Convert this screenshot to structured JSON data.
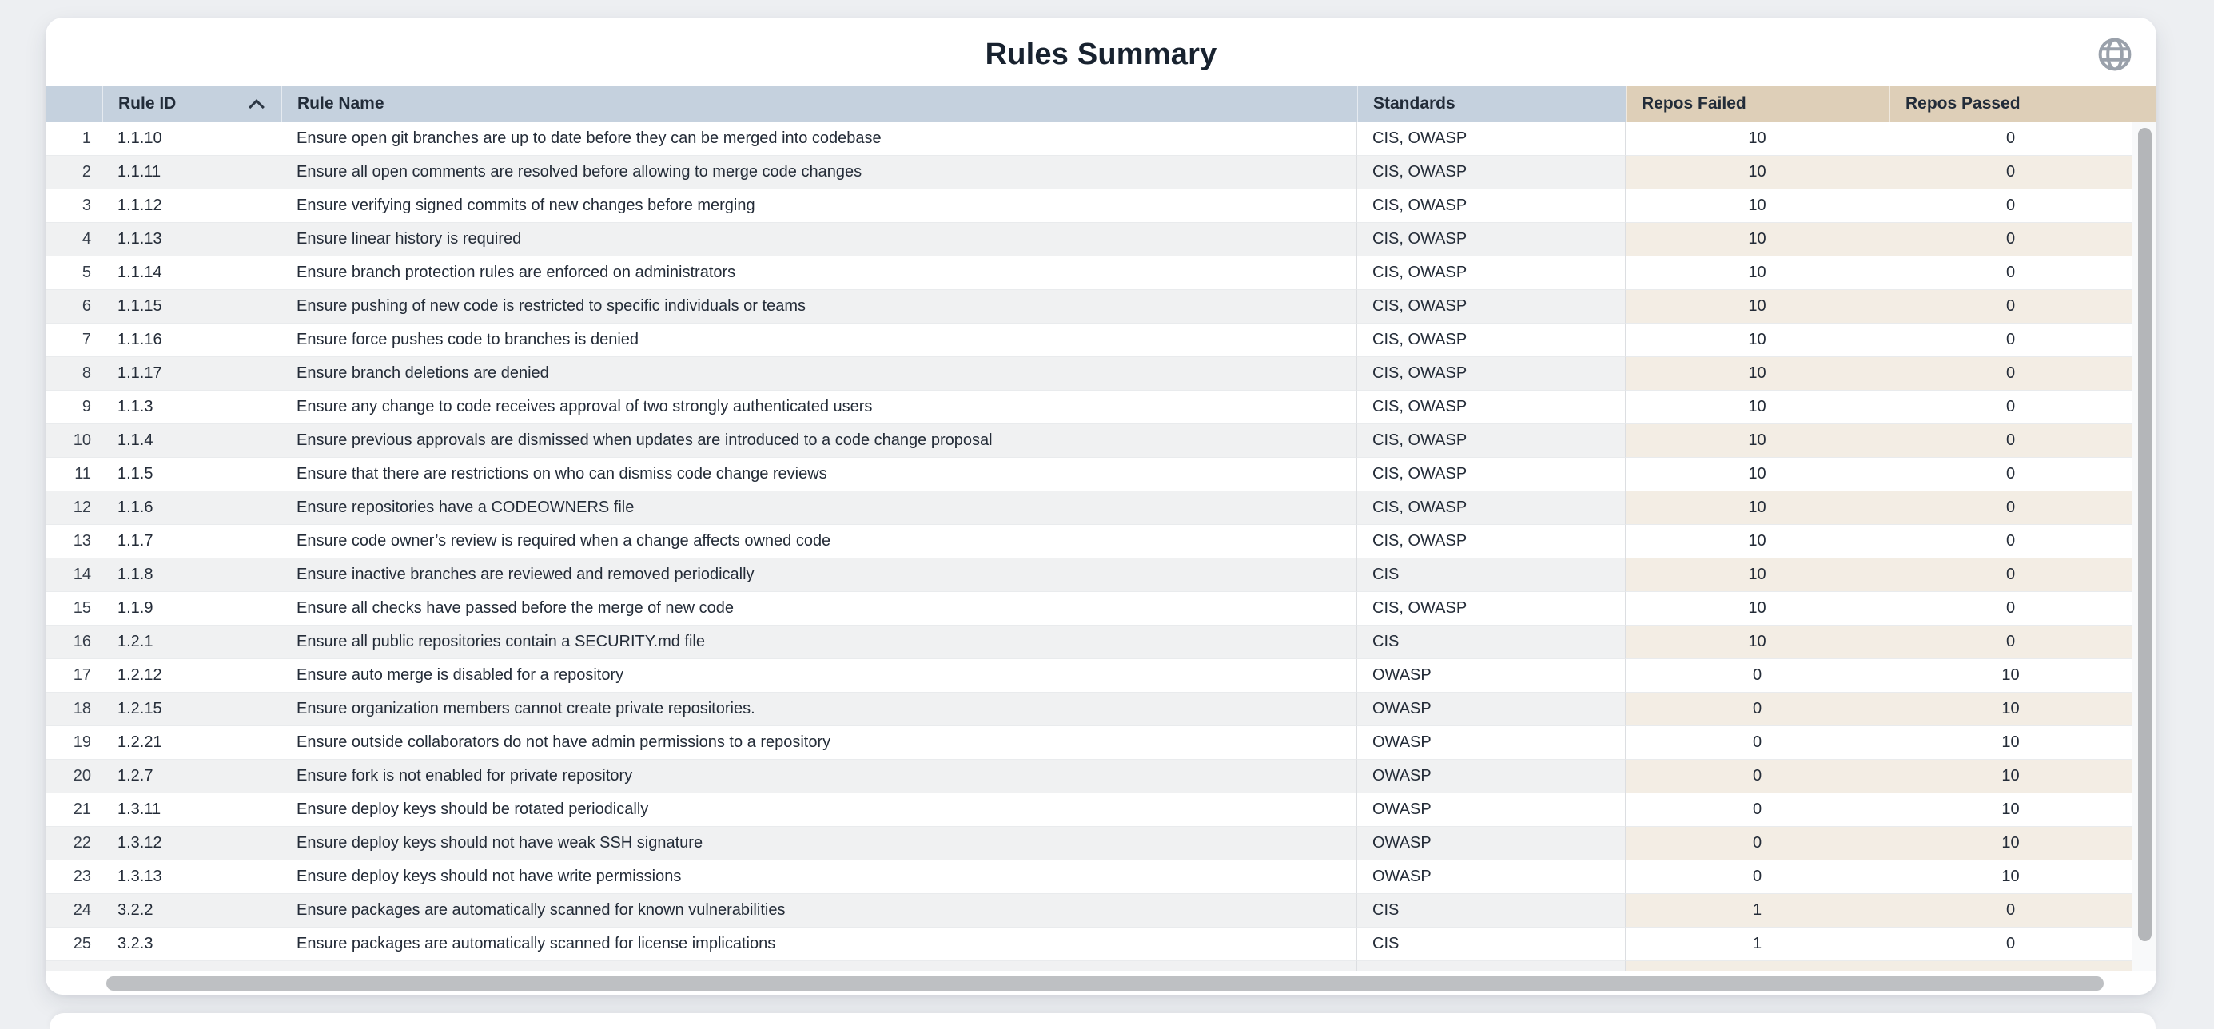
{
  "page": {
    "title": "Rules Summary"
  },
  "toolbar": {
    "globe_icon": "globe"
  },
  "table": {
    "sort": {
      "column": "rule_id",
      "direction": "ascending"
    },
    "columns": [
      {
        "key": "num",
        "label": ""
      },
      {
        "key": "rule_id",
        "label": "Rule ID"
      },
      {
        "key": "rule_name",
        "label": "Rule Name"
      },
      {
        "key": "standards",
        "label": "Standards"
      },
      {
        "key": "repos_failed",
        "label": "Repos Failed"
      },
      {
        "key": "repos_passed",
        "label": "Repos Passed"
      }
    ],
    "header_labels": {
      "rule_id": "Rule ID",
      "rule_name": "Rule Name",
      "standards": "Standards",
      "repos_failed": "Repos Failed",
      "repos_passed": "Repos Passed"
    },
    "rows": [
      {
        "num": "1",
        "rule_id": "1.1.10",
        "rule_name": "Ensure open git branches are up to date before they can be merged into codebase",
        "standards": "CIS, OWASP",
        "repos_failed": "10",
        "repos_passed": "0"
      },
      {
        "num": "2",
        "rule_id": "1.1.11",
        "rule_name": "Ensure all open comments are resolved before allowing to merge code changes",
        "standards": "CIS, OWASP",
        "repos_failed": "10",
        "repos_passed": "0"
      },
      {
        "num": "3",
        "rule_id": "1.1.12",
        "rule_name": "Ensure verifying signed commits of new changes before merging",
        "standards": "CIS, OWASP",
        "repos_failed": "10",
        "repos_passed": "0"
      },
      {
        "num": "4",
        "rule_id": "1.1.13",
        "rule_name": "Ensure linear history is required",
        "standards": "CIS, OWASP",
        "repos_failed": "10",
        "repos_passed": "0"
      },
      {
        "num": "5",
        "rule_id": "1.1.14",
        "rule_name": "Ensure branch protection rules are enforced on administrators",
        "standards": "CIS, OWASP",
        "repos_failed": "10",
        "repos_passed": "0"
      },
      {
        "num": "6",
        "rule_id": "1.1.15",
        "rule_name": "Ensure pushing of new code is restricted to specific individuals or teams",
        "standards": "CIS, OWASP",
        "repos_failed": "10",
        "repos_passed": "0"
      },
      {
        "num": "7",
        "rule_id": "1.1.16",
        "rule_name": "Ensure force pushes code to branches is denied",
        "standards": "CIS, OWASP",
        "repos_failed": "10",
        "repos_passed": "0"
      },
      {
        "num": "8",
        "rule_id": "1.1.17",
        "rule_name": "Ensure branch deletions are denied",
        "standards": "CIS, OWASP",
        "repos_failed": "10",
        "repos_passed": "0"
      },
      {
        "num": "9",
        "rule_id": "1.1.3",
        "rule_name": "Ensure any change to code receives approval of two strongly authenticated users",
        "standards": "CIS, OWASP",
        "repos_failed": "10",
        "repos_passed": "0"
      },
      {
        "num": "10",
        "rule_id": "1.1.4",
        "rule_name": "Ensure previous approvals are dismissed when updates are introduced to a code change proposal",
        "standards": "CIS, OWASP",
        "repos_failed": "10",
        "repos_passed": "0"
      },
      {
        "num": "11",
        "rule_id": "1.1.5",
        "rule_name": "Ensure that there are restrictions on who can dismiss code change reviews",
        "standards": "CIS, OWASP",
        "repos_failed": "10",
        "repos_passed": "0"
      },
      {
        "num": "12",
        "rule_id": "1.1.6",
        "rule_name": "Ensure repositories have a CODEOWNERS file",
        "standards": "CIS, OWASP",
        "repos_failed": "10",
        "repos_passed": "0"
      },
      {
        "num": "13",
        "rule_id": "1.1.7",
        "rule_name": "Ensure code owner’s review is required when a change affects owned code",
        "standards": "CIS, OWASP",
        "repos_failed": "10",
        "repos_passed": "0"
      },
      {
        "num": "14",
        "rule_id": "1.1.8",
        "rule_name": "Ensure inactive branches are reviewed and removed periodically",
        "standards": "CIS",
        "repos_failed": "10",
        "repos_passed": "0"
      },
      {
        "num": "15",
        "rule_id": "1.1.9",
        "rule_name": "Ensure all checks have passed before the merge of new code",
        "standards": "CIS, OWASP",
        "repos_failed": "10",
        "repos_passed": "0"
      },
      {
        "num": "16",
        "rule_id": "1.2.1",
        "rule_name": "Ensure all public repositories contain a SECURITY.md file",
        "standards": "CIS",
        "repos_failed": "10",
        "repos_passed": "0"
      },
      {
        "num": "17",
        "rule_id": "1.2.12",
        "rule_name": "Ensure auto merge is disabled for a repository",
        "standards": "OWASP",
        "repos_failed": "0",
        "repos_passed": "10"
      },
      {
        "num": "18",
        "rule_id": "1.2.15",
        "rule_name": "Ensure organization members cannot create private repositories.",
        "standards": "OWASP",
        "repos_failed": "0",
        "repos_passed": "10"
      },
      {
        "num": "19",
        "rule_id": "1.2.21",
        "rule_name": "Ensure outside collaborators do not have admin permissions to a repository",
        "standards": "OWASP",
        "repos_failed": "0",
        "repos_passed": "10"
      },
      {
        "num": "20",
        "rule_id": "1.2.7",
        "rule_name": "Ensure fork is not enabled for private repository",
        "standards": "OWASP",
        "repos_failed": "0",
        "repos_passed": "10"
      },
      {
        "num": "21",
        "rule_id": "1.3.11",
        "rule_name": "Ensure deploy keys should be rotated periodically",
        "standards": "OWASP",
        "repos_failed": "0",
        "repos_passed": "10"
      },
      {
        "num": "22",
        "rule_id": "1.3.12",
        "rule_name": "Ensure deploy keys should not have weak SSH signature",
        "standards": "OWASP",
        "repos_failed": "0",
        "repos_passed": "10"
      },
      {
        "num": "23",
        "rule_id": "1.3.13",
        "rule_name": "Ensure deploy keys should not have write permissions",
        "standards": "OWASP",
        "repos_failed": "0",
        "repos_passed": "10"
      },
      {
        "num": "24",
        "rule_id": "3.2.2",
        "rule_name": "Ensure packages are automatically scanned for known vulnerabilities",
        "standards": "CIS",
        "repos_failed": "1",
        "repos_passed": "0"
      },
      {
        "num": "25",
        "rule_id": "3.2.3",
        "rule_name": "Ensure packages are automatically scanned for license implications",
        "standards": "CIS",
        "repos_failed": "1",
        "repos_passed": "0"
      }
    ]
  },
  "colors": {
    "page_background": "#edeff2",
    "card_background": "#ffffff",
    "header_blue": "#c5d1de",
    "header_tan": "#decfb8",
    "row_stripe_grey": "#f0f1f2",
    "row_stripe_beige": "#f3ede4",
    "text_primary": "#242c38",
    "title_text": "#18222f",
    "scrollbar_thumb": "#b8babd",
    "globe_icon": "#9aa1ab"
  }
}
